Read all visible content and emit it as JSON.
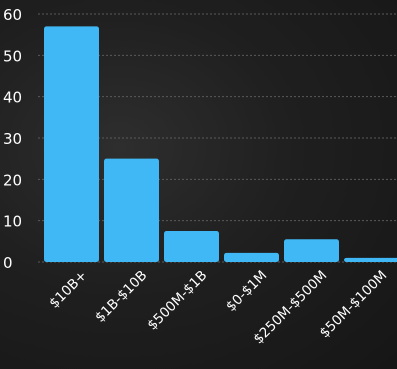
{
  "chart_data": {
    "type": "bar",
    "categories": [
      "$10B+",
      "$1B-$10B",
      "$500M-$1B",
      "$0-$1M",
      "$250M-$500M",
      "$50M-$100M"
    ],
    "values": [
      57,
      25,
      7.5,
      2.2,
      5.5,
      1
    ],
    "title": "",
    "xlabel": "",
    "ylabel": "",
    "ylim": [
      0,
      60
    ],
    "yticks": [
      0,
      10,
      20,
      30,
      40,
      50,
      60
    ],
    "grid": true,
    "bar_color": "#3fb8f5",
    "grid_color": "#5a5a5a",
    "text_color": "#ffffff"
  }
}
